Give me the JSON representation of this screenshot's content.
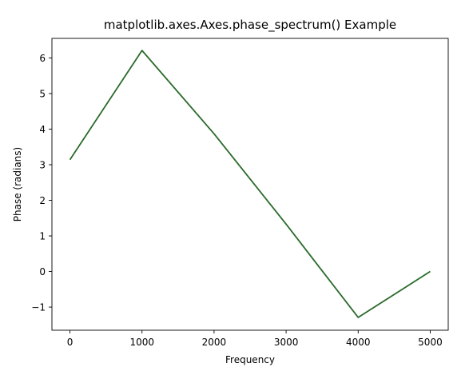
{
  "chart_data": {
    "type": "line",
    "title": "matplotlib.axes.Axes.phase_spectrum() Example",
    "xlabel": "Frequency",
    "ylabel": "Phase (radians)",
    "xlim": [
      -250,
      5250
    ],
    "ylim": [
      -1.65,
      6.55
    ],
    "xticks": [
      0,
      1000,
      2000,
      3000,
      4000,
      5000
    ],
    "xtick_labels": [
      "0",
      "1000",
      "2000",
      "3000",
      "4000",
      "5000"
    ],
    "yticks": [
      -1,
      0,
      1,
      2,
      3,
      4,
      5,
      6
    ],
    "ytick_labels": [
      "−1",
      "0",
      "1",
      "2",
      "3",
      "4",
      "5",
      "6"
    ],
    "grid": false,
    "series": [
      {
        "color": "#2a6a2a",
        "x": [
          0,
          1000,
          2000,
          3000,
          4000,
          5000
        ],
        "y": [
          3.14,
          6.21,
          3.87,
          1.33,
          -1.29,
          0.0
        ]
      }
    ]
  }
}
